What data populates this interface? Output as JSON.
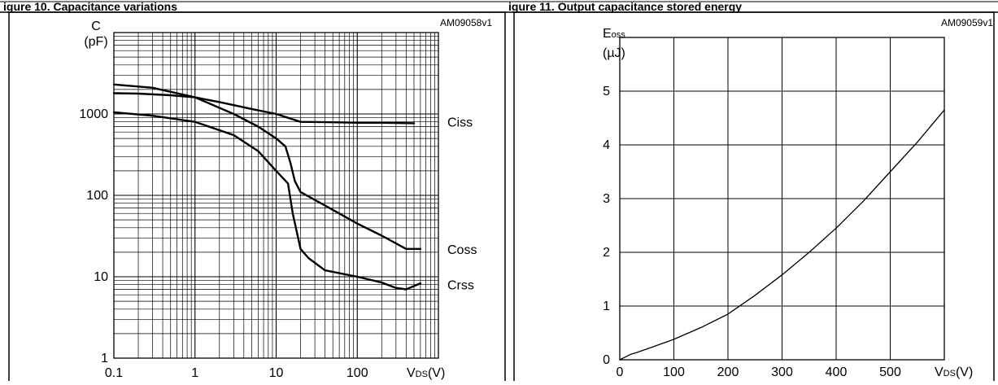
{
  "header": {
    "left_caption": "igure 10. Capacitance variations",
    "right_caption": "igure 11. Output capacitance stored energy"
  },
  "chart_data": [
    {
      "type": "line",
      "code": "AM09058v1",
      "ylabel_lines": [
        "C",
        "(pF)"
      ],
      "xlabel_main": "V",
      "xlabel_sub": "DS",
      "xlabel_unit": "(V)",
      "xscale": "log",
      "yscale": "log",
      "xlim": [
        0.1,
        1000
      ],
      "ylim": [
        1,
        10000
      ],
      "xticks": [
        {
          "value": 0.1,
          "label": "0.1"
        },
        {
          "value": 1,
          "label": "1"
        },
        {
          "value": 10,
          "label": "10"
        },
        {
          "value": 100,
          "label": "100"
        }
      ],
      "yticks": [
        {
          "value": 1,
          "label": "1"
        },
        {
          "value": 10,
          "label": "10"
        },
        {
          "value": 100,
          "label": "100"
        },
        {
          "value": 1000,
          "label": "1000"
        }
      ],
      "grid": true,
      "series": [
        {
          "name": "Ciss",
          "label_at_y": 800,
          "x": [
            0.1,
            0.2,
            0.5,
            1,
            2,
            5,
            10,
            20,
            50,
            100,
            200,
            500
          ],
          "y": [
            1800,
            1780,
            1700,
            1600,
            1400,
            1150,
            1000,
            800,
            790,
            780,
            780,
            770
          ]
        },
        {
          "name": "Coss",
          "label_at_y": 22,
          "x": [
            0.1,
            0.3,
            1,
            3,
            6,
            10,
            13,
            15,
            17,
            20,
            40,
            100,
            200,
            400,
            600
          ],
          "y": [
            2300,
            2100,
            1600,
            1000,
            700,
            500,
            400,
            250,
            150,
            110,
            75,
            45,
            32,
            22,
            22
          ]
        },
        {
          "name": "Crss",
          "label_at_y": 8,
          "x": [
            0.1,
            0.3,
            1,
            3,
            6,
            10,
            14,
            16,
            20,
            25,
            40,
            100,
            200,
            300,
            400,
            600
          ],
          "y": [
            1050,
            950,
            800,
            550,
            350,
            200,
            140,
            60,
            22,
            17,
            12,
            10,
            8.5,
            7.3,
            7,
            8.3
          ]
        }
      ]
    },
    {
      "type": "line",
      "code": "AM09059v1",
      "ylabel_main": "E",
      "ylabel_sub": "oss",
      "ylabel_unit": "(µJ)",
      "xlabel_main": "V",
      "xlabel_sub": "DS",
      "xlabel_unit": "(V)",
      "xlim": [
        0,
        600
      ],
      "ylim": [
        0,
        6
      ],
      "xticks": [
        {
          "value": 0,
          "label": "0"
        },
        {
          "value": 100,
          "label": "100"
        },
        {
          "value": 200,
          "label": "200"
        },
        {
          "value": 300,
          "label": "300"
        },
        {
          "value": 400,
          "label": "400"
        },
        {
          "value": 500,
          "label": "500"
        }
      ],
      "yticks": [
        {
          "value": 0,
          "label": "0"
        },
        {
          "value": 1,
          "label": "1"
        },
        {
          "value": 2,
          "label": "2"
        },
        {
          "value": 3,
          "label": "3"
        },
        {
          "value": 4,
          "label": "4"
        },
        {
          "value": 5,
          "label": "5"
        }
      ],
      "grid": true,
      "series": [
        {
          "x": [
            0,
            10,
            20,
            30,
            50,
            100,
            150,
            200,
            250,
            300,
            350,
            400,
            450,
            500,
            550,
            600
          ],
          "y": [
            0,
            0.05,
            0.1,
            0.13,
            0.2,
            0.38,
            0.6,
            0.85,
            1.2,
            1.58,
            2.0,
            2.45,
            2.95,
            3.5,
            4.05,
            4.65
          ]
        }
      ]
    }
  ]
}
